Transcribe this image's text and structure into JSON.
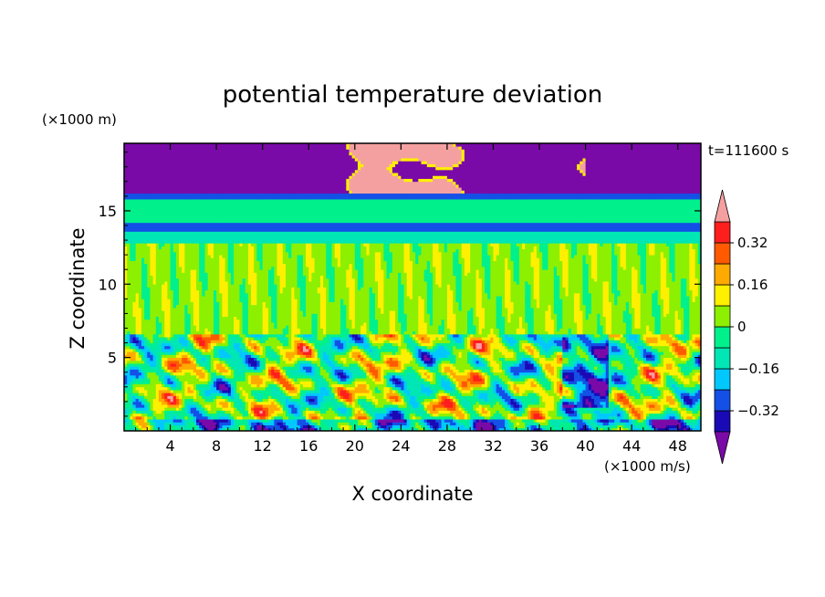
{
  "chart_data": {
    "type": "heatmap",
    "title": "potential temperature deviation",
    "xlabel": "X coordinate",
    "ylabel": "Z coordinate",
    "x_unit": "(×1000 m/s)",
    "y_unit": "(×1000 m)",
    "time_label": "t=111600 s",
    "xlim": [
      0,
      50
    ],
    "ylim": [
      0,
      19.6
    ],
    "x_ticks": [
      4,
      8,
      12,
      16,
      20,
      24,
      28,
      32,
      36,
      40,
      44,
      48
    ],
    "x_tick_labels": [
      "4",
      "8",
      "12",
      "16",
      "20",
      "24",
      "28",
      "32",
      "36",
      "40",
      "44",
      "48"
    ],
    "y_ticks": [
      5,
      10,
      15
    ],
    "y_tick_labels": [
      "5",
      "10",
      "15"
    ],
    "colorbar": {
      "levels": [
        -0.4,
        -0.32,
        -0.24,
        -0.16,
        -0.08,
        0,
        0.08,
        0.16,
        0.24,
        0.32,
        0.4
      ],
      "colors": [
        "#7a0aa8",
        "#1a0ab5",
        "#1450e6",
        "#00c8ff",
        "#00e6b4",
        "#00f08c",
        "#8cf000",
        "#fff000",
        "#ffaa00",
        "#ff5a00",
        "#ff1e1e",
        "#f5a0a0"
      ],
      "tick_labels": [
        {
          "value": 0.32,
          "label": "0.32"
        },
        {
          "value": 0.16,
          "label": "0.16"
        },
        {
          "value": 0,
          "label": "0"
        },
        {
          "value": -0.16,
          "label": "−0.16"
        },
        {
          "value": -0.32,
          "label": "−0.32"
        }
      ],
      "extend": "both"
    },
    "field_description": {
      "layers": [
        {
          "z_range": [
            16.2,
            19.6
          ],
          "value": -0.45
        },
        {
          "z_range": [
            15.8,
            16.2
          ],
          "value": -0.3
        },
        {
          "z_range": [
            14.3,
            15.8
          ],
          "value": -0.02
        },
        {
          "z_range": [
            13.6,
            14.3
          ],
          "value": -0.3
        },
        {
          "z_range": [
            12.8,
            13.6
          ],
          "value": -0.15
        },
        {
          "z_range": [
            6.6,
            12.8
          ],
          "value": 0.04
        },
        {
          "z_range": [
            0,
            6.6
          ],
          "value": "turbulent"
        }
      ]
    }
  }
}
